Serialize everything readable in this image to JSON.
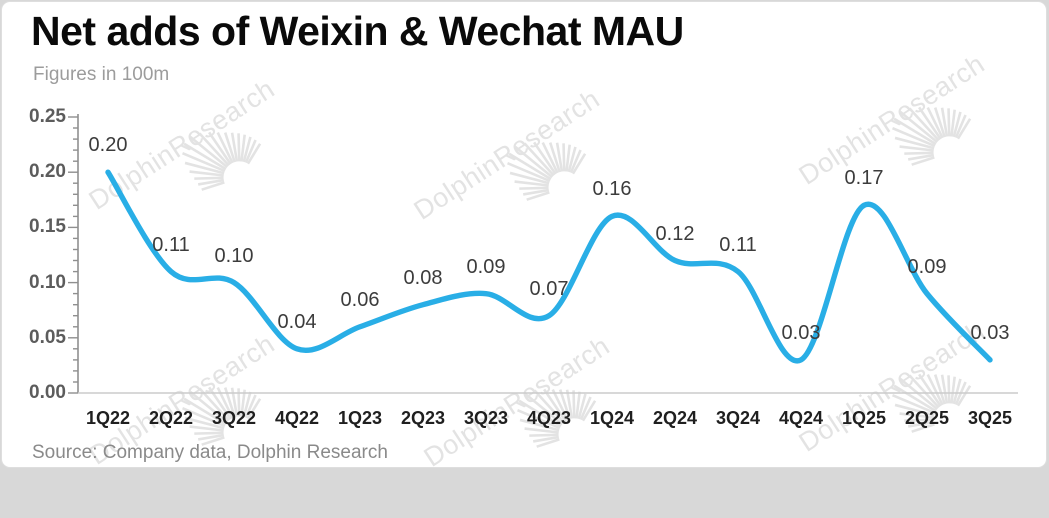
{
  "header": {
    "title": "Net adds of Weixin & Wechat MAU",
    "subtitle": "Figures in 100m"
  },
  "footer": {
    "source": "Source: Company data, Dolphin Research"
  },
  "watermark": {
    "text": "DolphinResearch",
    "color": "#e3e3e3"
  },
  "chart_data": {
    "type": "line",
    "title": "Net adds of Weixin & Wechat MAU",
    "unit_note": "Figures in 100m",
    "categories": [
      "1Q22",
      "2Q22",
      "3Q22",
      "4Q22",
      "1Q23",
      "2Q23",
      "3Q23",
      "4Q23",
      "1Q24",
      "2Q24",
      "3Q24",
      "4Q24",
      "1Q25",
      "2Q25",
      "3Q25"
    ],
    "series": [
      {
        "name": "Net adds of Weixin & Wechat MAU",
        "values": [
          0.2,
          0.11,
          0.1,
          0.04,
          0.06,
          0.08,
          0.09,
          0.07,
          0.16,
          0.12,
          0.11,
          0.03,
          0.17,
          0.09,
          0.03
        ]
      }
    ],
    "data_labels": [
      "0.20",
      "0.11",
      "0.10",
      "0.04",
      "0.06",
      "0.08",
      "0.09",
      "0.07",
      "0.16",
      "0.12",
      "0.11",
      "0.03",
      "0.17",
      "0.09",
      "0.03"
    ],
    "xlabel": "",
    "ylabel": "",
    "ylim": [
      0,
      0.25
    ],
    "ytick_labels": [
      "0.00",
      "0.05",
      "0.10",
      "0.15",
      "0.20",
      "0.25"
    ],
    "ytick_minor_step": 0.01,
    "grid": false,
    "legend": "none",
    "line_color": "#29AEE6",
    "data_label_color": "#3c3c3c"
  }
}
